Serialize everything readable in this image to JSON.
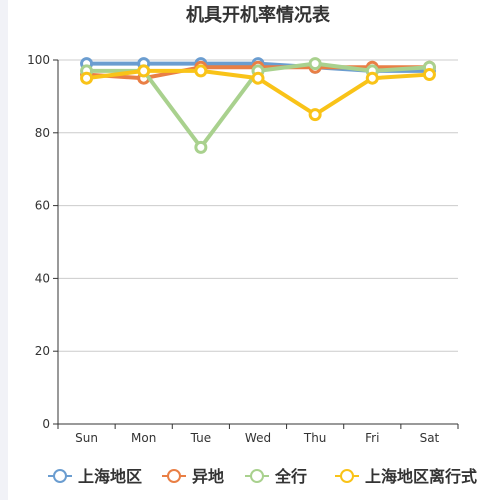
{
  "chart_data": {
    "type": "line",
    "title": "机具开机率情况表",
    "xlabel": "",
    "ylabel": "",
    "categories": [
      "Sun",
      "Mon",
      "Tue",
      "Wed",
      "Thu",
      "Fri",
      "Sat"
    ],
    "y_ticks": [
      "0",
      "20",
      "40",
      "60",
      "80",
      "100"
    ],
    "ylim": [
      0,
      100
    ],
    "grid": true,
    "legend_position": "bottom",
    "series": [
      {
        "name": "上海地区",
        "color": "#6b9dd0",
        "values": [
          99,
          99,
          99,
          99,
          98,
          97,
          97
        ]
      },
      {
        "name": "异地",
        "color": "#e97f45",
        "values": [
          96,
          95,
          98,
          98,
          98,
          98,
          98
        ]
      },
      {
        "name": "全行",
        "color": "#a9d18e",
        "values": [
          97,
          97,
          76,
          97,
          99,
          97,
          98
        ]
      },
      {
        "name": "上海地区离行式",
        "color": "#f9c318",
        "values": [
          95,
          97,
          97,
          95,
          85,
          95,
          96
        ]
      }
    ]
  }
}
